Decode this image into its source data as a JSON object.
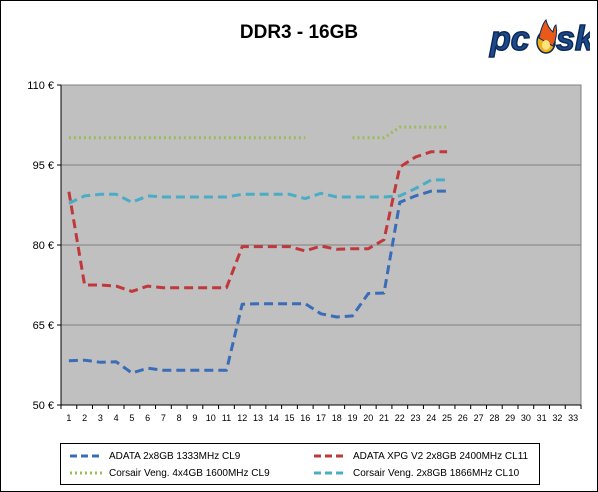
{
  "chart_data": {
    "type": "line",
    "title": "DDR3 - 16GB",
    "xlabel": "",
    "ylabel": "",
    "x": [
      1,
      2,
      3,
      4,
      5,
      6,
      7,
      8,
      9,
      10,
      11,
      12,
      13,
      14,
      15,
      16,
      17,
      18,
      19,
      20,
      21,
      22,
      23,
      24,
      25,
      26,
      27,
      28,
      29,
      30,
      31,
      32,
      33
    ],
    "ylim": [
      50,
      110
    ],
    "yticks": [
      50,
      65,
      80,
      95,
      110
    ],
    "ytick_labels": [
      "50 €",
      "65 €",
      "80 €",
      "95 €",
      "110 €"
    ],
    "grid": true,
    "legend_position": "bottom",
    "series": [
      {
        "name": "ADATA 2x8GB 1333MHz CL9",
        "color": "#3b6cb7",
        "dash": "dashed",
        "values": [
          58.3,
          58.4,
          58.0,
          58.1,
          56.0,
          56.9,
          56.5,
          56.5,
          56.5,
          56.5,
          56.5,
          68.9,
          69.0,
          69.0,
          69.0,
          69.0,
          67.1,
          66.5,
          66.7,
          70.9,
          71.0,
          88.0,
          89.2,
          90.1,
          90.1,
          null,
          null,
          null,
          null,
          null,
          null,
          null,
          null
        ]
      },
      {
        "name": "ADATA XPG V2 2x8GB 2400MHz CL11",
        "color": "#c0383b",
        "dash": "dashed",
        "values": [
          90.0,
          72.5,
          72.5,
          72.3,
          71.3,
          72.3,
          72.0,
          72.0,
          72.0,
          72.0,
          72.0,
          79.7,
          79.7,
          79.7,
          79.7,
          78.9,
          79.8,
          79.2,
          79.3,
          79.3,
          81.0,
          94.6,
          96.5,
          97.5,
          97.5,
          null,
          null,
          null,
          null,
          null,
          null,
          null,
          null
        ]
      },
      {
        "name": "Corsair Veng. 4x4GB 1600MHz CL9",
        "color": "#9bbb59",
        "dash": "dotted",
        "values": [
          100.1,
          100.1,
          100.1,
          100.1,
          100.1,
          100.1,
          100.1,
          100.1,
          100.1,
          100.1,
          100.1,
          100.1,
          100.1,
          100.1,
          100.1,
          100.1,
          null,
          null,
          100.1,
          100.1,
          100.1,
          102.1,
          102.1,
          102.1,
          102.1,
          null,
          null,
          null,
          null,
          null,
          null,
          null,
          null
        ]
      },
      {
        "name": "Corsair Veng. 2x8GB 1866MHz CL10",
        "color": "#4bacc6",
        "dash": "dashed",
        "values": [
          87.8,
          89.2,
          89.5,
          89.5,
          88.0,
          89.2,
          89.0,
          89.0,
          89.0,
          89.0,
          89.0,
          89.5,
          89.5,
          89.5,
          89.5,
          88.7,
          89.7,
          89.0,
          89.0,
          89.0,
          89.0,
          89.2,
          90.6,
          92.2,
          92.2,
          null,
          null,
          null,
          null,
          null,
          null,
          null,
          null
        ]
      }
    ]
  },
  "legend": {
    "items": [
      {
        "label": "ADATA 2x8GB 1333MHz CL9"
      },
      {
        "label": "ADATA XPG V2 2x8GB 2400MHz CL11"
      },
      {
        "label": "Corsair Veng. 4x4GB 1600MHz CL9"
      },
      {
        "label": "Corsair Veng. 2x8GB 1866MHz CL10"
      }
    ]
  },
  "logo": {
    "text": "pcsk"
  }
}
